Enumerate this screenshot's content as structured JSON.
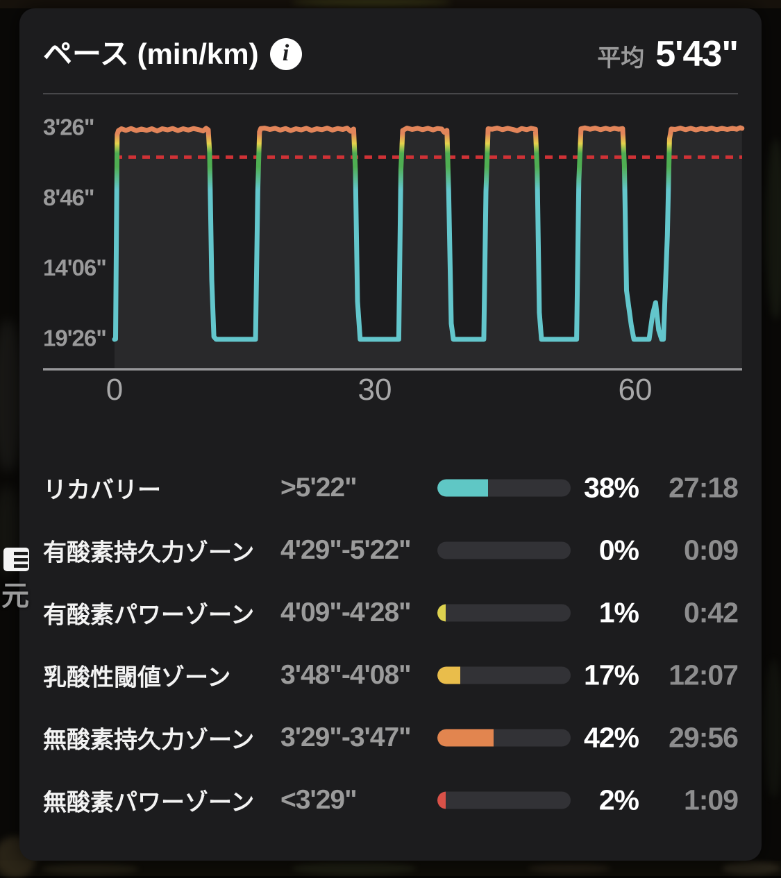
{
  "header": {
    "title": "ペース (min/km)",
    "info_glyph": "i",
    "average_label": "平均",
    "average_value": "5'43\""
  },
  "background": {
    "map_kanji_label": "元"
  },
  "chart_data": {
    "type": "line",
    "title": "ペース (min/km)",
    "x_unit": "min",
    "xlim": [
      0,
      72.3
    ],
    "xticks": [
      {
        "v": 0,
        "label": "0"
      },
      {
        "v": 30,
        "label": "30"
      },
      {
        "v": 60,
        "label": "60"
      }
    ],
    "y_axis_inverted_pace": true,
    "yticks": [
      {
        "sec": 206,
        "label": "3'26\""
      },
      {
        "sec": 526,
        "label": "8'46\""
      },
      {
        "sec": 846,
        "label": "14'06\""
      },
      {
        "sec": 1166,
        "label": "19'26\""
      }
    ],
    "avg": {
      "label": "平均",
      "value": "5'43\"",
      "pace_sec": 343,
      "line_color": "#cf3236"
    },
    "line_gradient": [
      {
        "offset": 0.0,
        "color": "#e2855a"
      },
      {
        "offset": 0.09,
        "color": "#e2855a"
      },
      {
        "offset": 0.17,
        "color": "#e6d24c"
      },
      {
        "offset": 0.25,
        "color": "#4fae52"
      },
      {
        "offset": 0.36,
        "color": "#4fae52"
      },
      {
        "offset": 0.55,
        "color": "#63c6cc"
      },
      {
        "offset": 1.0,
        "color": "#63c6cc"
      }
    ],
    "area_fill_color": "#29292b",
    "series": [
      {
        "name": "pace",
        "points": [
          [
            0,
            1172
          ],
          [
            0.12,
            1170
          ],
          [
            0.3,
            240
          ],
          [
            0.45,
            222
          ],
          [
            0.8,
            214
          ],
          [
            1.3,
            221
          ],
          [
            1.9,
            213
          ],
          [
            2.5,
            222
          ],
          [
            3.1,
            215
          ],
          [
            3.7,
            221
          ],
          [
            4.3,
            214
          ],
          [
            4.9,
            224
          ],
          [
            5.5,
            214
          ],
          [
            6.1,
            219
          ],
          [
            6.7,
            213
          ],
          [
            7.3,
            222
          ],
          [
            7.9,
            214
          ],
          [
            8.5,
            220
          ],
          [
            9.1,
            213
          ],
          [
            9.7,
            218
          ],
          [
            10.2,
            224
          ],
          [
            10.55,
            212
          ],
          [
            10.8,
            219
          ],
          [
            10.95,
            320
          ],
          [
            11.2,
            900
          ],
          [
            11.45,
            1160
          ],
          [
            11.7,
            1172
          ],
          [
            16.25,
            1172
          ],
          [
            16.5,
            500
          ],
          [
            16.7,
            228
          ],
          [
            16.85,
            213
          ],
          [
            17.3,
            211
          ],
          [
            17.9,
            217
          ],
          [
            18.5,
            212
          ],
          [
            19.1,
            220
          ],
          [
            19.7,
            213
          ],
          [
            20.3,
            222
          ],
          [
            20.9,
            214
          ],
          [
            21.5,
            219
          ],
          [
            22.1,
            212
          ],
          [
            22.7,
            221
          ],
          [
            23.3,
            214
          ],
          [
            23.9,
            218
          ],
          [
            24.5,
            211
          ],
          [
            25.1,
            220
          ],
          [
            25.7,
            213
          ],
          [
            26.3,
            217
          ],
          [
            26.8,
            211
          ],
          [
            27.2,
            225
          ],
          [
            27.55,
            215
          ],
          [
            27.75,
            400
          ],
          [
            28,
            1000
          ],
          [
            28.3,
            1172
          ],
          [
            32.75,
            1172
          ],
          [
            33,
            400
          ],
          [
            33.2,
            222
          ],
          [
            33.7,
            211
          ],
          [
            34.3,
            217
          ],
          [
            34.9,
            212
          ],
          [
            35.5,
            218
          ],
          [
            36.1,
            212
          ],
          [
            36.7,
            219
          ],
          [
            37.2,
            213
          ],
          [
            37.7,
            215
          ],
          [
            38,
            230
          ],
          [
            38.3,
            221
          ],
          [
            38.5,
            500
          ],
          [
            38.8,
            1100
          ],
          [
            39.05,
            1172
          ],
          [
            42.55,
            1172
          ],
          [
            42.8,
            500
          ],
          [
            43.05,
            214
          ],
          [
            43.5,
            216
          ],
          [
            44.1,
            211
          ],
          [
            44.7,
            218
          ],
          [
            45.3,
            212
          ],
          [
            45.9,
            217
          ],
          [
            46.4,
            223
          ],
          [
            46.9,
            213
          ],
          [
            47.5,
            218
          ],
          [
            48,
            212
          ],
          [
            48.5,
            216
          ],
          [
            48.7,
            400
          ],
          [
            48.95,
            1050
          ],
          [
            49.2,
            1172
          ],
          [
            53.25,
            1172
          ],
          [
            53.5,
            450
          ],
          [
            53.75,
            214
          ],
          [
            54.2,
            210
          ],
          [
            54.8,
            216
          ],
          [
            55.4,
            211
          ],
          [
            56,
            218
          ],
          [
            56.6,
            212
          ],
          [
            57.1,
            217
          ],
          [
            57.6,
            212
          ],
          [
            58.1,
            216
          ],
          [
            58.55,
            213
          ],
          [
            58.75,
            380
          ],
          [
            59,
            950
          ],
          [
            59.55,
            1110
          ],
          [
            59.85,
            1172
          ],
          [
            61.6,
            1172
          ],
          [
            62,
            1060
          ],
          [
            62.35,
            1005
          ],
          [
            62.7,
            1130
          ],
          [
            63.05,
            1172
          ],
          [
            63.25,
            1172
          ],
          [
            63.7,
            700
          ],
          [
            63.95,
            260
          ],
          [
            64.15,
            215
          ],
          [
            64.6,
            217
          ],
          [
            65.2,
            211
          ],
          [
            65.8,
            218
          ],
          [
            66.4,
            212
          ],
          [
            67,
            219
          ],
          [
            67.6,
            213
          ],
          [
            68.2,
            217
          ],
          [
            68.8,
            211
          ],
          [
            69.4,
            218
          ],
          [
            70,
            212
          ],
          [
            70.6,
            217
          ],
          [
            71.2,
            212
          ],
          [
            71.7,
            216
          ],
          [
            72.1,
            209
          ],
          [
            72.3,
            212
          ]
        ]
      }
    ]
  },
  "zones": {
    "rows": [
      {
        "name": "リカバリー",
        "range": ">5'22\"",
        "pct": 38,
        "pct_label": "38%",
        "time": "27:18",
        "color": "#5fc7c5"
      },
      {
        "name": "有酸素持久力ゾーン",
        "range": "4'29\"-5'22\"",
        "pct": 0,
        "pct_label": "0%",
        "time": "0:09",
        "color": "#4fae52"
      },
      {
        "name": "有酸素パワーゾーン",
        "range": "4'09\"-4'28\"",
        "pct": 1,
        "pct_label": "1%",
        "time": "0:42",
        "color": "#ddd24f"
      },
      {
        "name": "乳酸性閾値ゾーン",
        "range": "3'48\"-4'08\"",
        "pct": 17,
        "pct_label": "17%",
        "time": "12:07",
        "color": "#e9bd4b"
      },
      {
        "name": "無酸素持久力ゾーン",
        "range": "3'29\"-3'47\"",
        "pct": 42,
        "pct_label": "42%",
        "time": "29:56",
        "color": "#e2854f"
      },
      {
        "name": "無酸素パワーゾーン",
        "range": "<3'29\"",
        "pct": 2,
        "pct_label": "2%",
        "time": "1:09",
        "color": "#d95148"
      }
    ]
  }
}
